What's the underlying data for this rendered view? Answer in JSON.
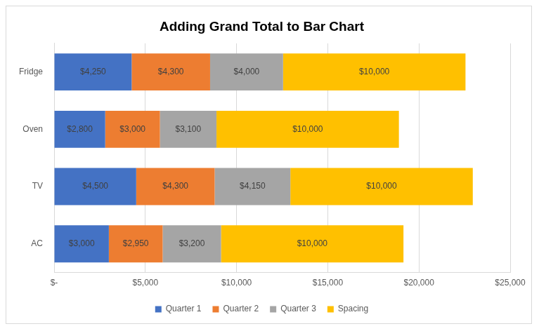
{
  "chart_data": {
    "type": "bar",
    "orientation": "horizontal",
    "stacked": true,
    "title": "Adding Grand Total to Bar Chart",
    "categories": [
      "Fridge",
      "Oven",
      "TV",
      "AC"
    ],
    "series": [
      {
        "name": "Quarter 1",
        "color": "#4472c4",
        "values": [
          4250,
          2800,
          4500,
          3000
        ],
        "value_labels": [
          "$4,250",
          "$2,800",
          "$4,500",
          "$3,000"
        ]
      },
      {
        "name": "Quarter 2",
        "color": "#ed7d31",
        "values": [
          4300,
          3000,
          4300,
          2950
        ],
        "value_labels": [
          "$4,300",
          "$3,000",
          "$4,300",
          "$2,950"
        ]
      },
      {
        "name": "Quarter 3",
        "color": "#a5a5a5",
        "values": [
          4000,
          3100,
          4150,
          3200
        ],
        "value_labels": [
          "$4,000",
          "$3,100",
          "$4,150",
          "$3,200"
        ]
      },
      {
        "name": "Spacing",
        "color": "#ffc000",
        "values": [
          10000,
          10000,
          10000,
          10000
        ],
        "value_labels": [
          "$10,000",
          "$10,000",
          "$10,000",
          "$10,000"
        ]
      }
    ],
    "xlim": [
      0,
      25000
    ],
    "xticks": [
      {
        "value": 0,
        "label": "$-"
      },
      {
        "value": 5000,
        "label": "$5,000"
      },
      {
        "value": 10000,
        "label": "$10,000"
      },
      {
        "value": 15000,
        "label": "$15,000"
      },
      {
        "value": 20000,
        "label": "$20,000"
      },
      {
        "value": 25000,
        "label": "$25,000"
      }
    ],
    "data_labels": true,
    "grid": true,
    "legend": "bottom"
  }
}
